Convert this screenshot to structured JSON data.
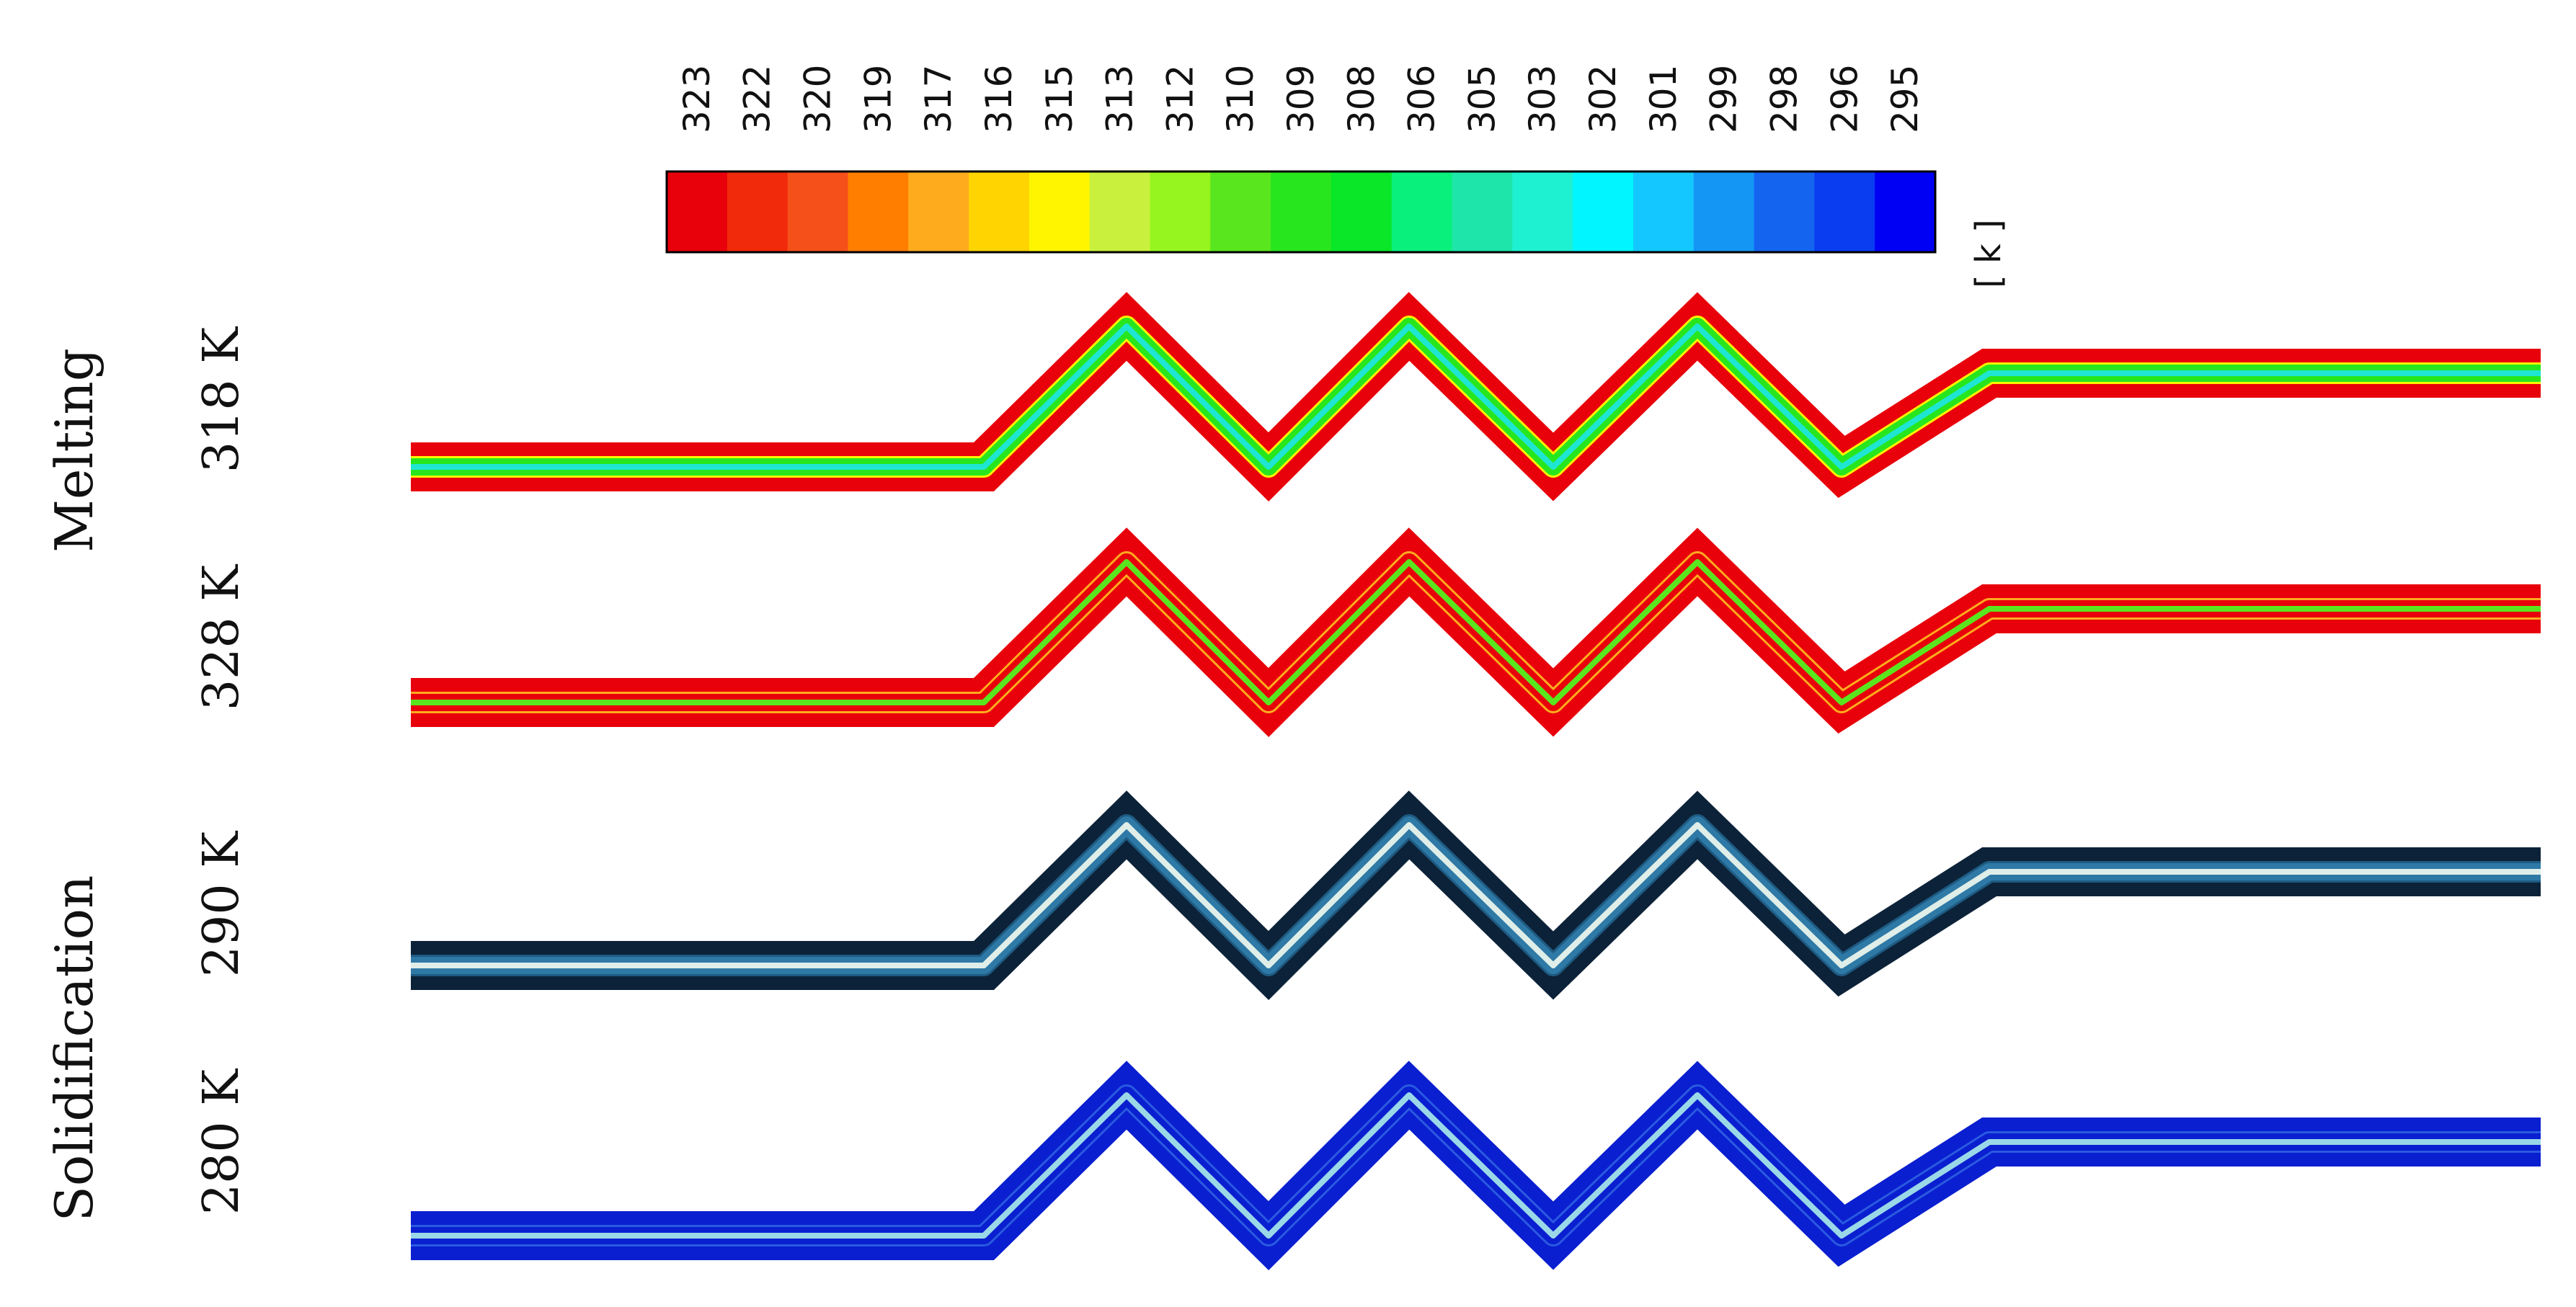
{
  "colorbar": {
    "ticks": [
      "323",
      "322",
      "320",
      "319",
      "317",
      "316",
      "315",
      "313",
      "312",
      "310",
      "309",
      "308",
      "306",
      "305",
      "303",
      "302",
      "301",
      "299",
      "298",
      "296",
      "295"
    ],
    "colors": [
      "#e8000b",
      "#f02a0a",
      "#f5501a",
      "#ff7e00",
      "#ffab1e",
      "#ffd400",
      "#fff500",
      "#c8f03c",
      "#96f51e",
      "#5ae61e",
      "#28e61e",
      "#0ae628",
      "#0af07d",
      "#1ee6aa",
      "#1ef0d2",
      "#00f5ff",
      "#14c8ff",
      "#1496f5",
      "#1464f0",
      "#0a3cf0",
      "#0000f5"
    ],
    "unit": "[ k ]"
  },
  "process_labels": [
    "Melting",
    "Solidification"
  ],
  "panels": [
    {
      "temperature": "318 K",
      "wall": "#e8000b",
      "mid": "#28e61e",
      "core": "#1ee6d2",
      "rim": "#fff500"
    },
    {
      "temperature": "328 K",
      "wall": "#e8000b",
      "mid": "#e8000b",
      "core": "#5ae61e",
      "rim": "#ffab1e"
    },
    {
      "temperature": "290 K",
      "wall": "#0c2238",
      "mid": "#2e79a6",
      "core": "#dfeee8",
      "rim": "#1e5a82"
    },
    {
      "temperature": "280 K",
      "wall": "#0a1fd0",
      "mid": "#0a1fd0",
      "core": "#9ad8e8",
      "rim": "#2a5ae0"
    }
  ]
}
